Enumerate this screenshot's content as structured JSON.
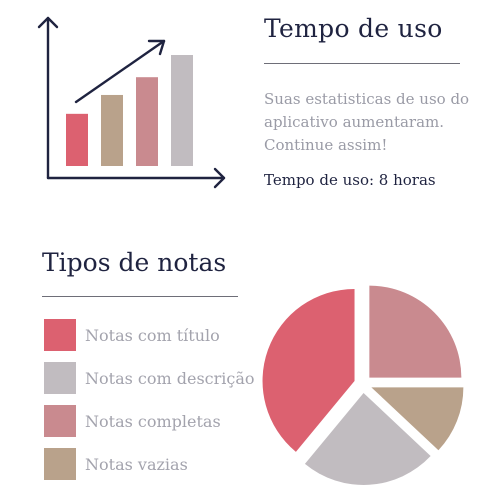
{
  "usage": {
    "title": "Tempo de uso",
    "message": "Suas estatisticas de uso do aplicativo aumentaram. Continue assim!",
    "time_line": "Tempo de uso: 8 horas"
  },
  "illustration": {
    "bar_heights_relative": [
      0.47,
      0.64,
      0.8,
      1.0
    ],
    "bar_colors": [
      "#dc6170",
      "#b9a28b",
      "#c98a8f",
      "#c1bcc0"
    ],
    "axis_color": "#1f2340"
  },
  "note_types": {
    "title": "Tipos de notas",
    "legend": [
      {
        "label": "Notas com título",
        "color": "#dc6170"
      },
      {
        "label": "Notas com descrição",
        "color": "#c1bcc0"
      },
      {
        "label": "Notas completas",
        "color": "#c98a8f"
      },
      {
        "label": "Notas vazias",
        "color": "#b9a28b"
      }
    ]
  },
  "chart_data": {
    "type": "pie",
    "categories": [
      "Notas com título",
      "Notas com descrição",
      "Notas completas",
      "Notas vazias"
    ],
    "values": [
      39,
      24,
      25,
      12
    ],
    "colors": [
      "#dc6170",
      "#c1bcc0",
      "#c98a8f",
      "#b9a28b"
    ],
    "title": "",
    "legend": "left"
  }
}
